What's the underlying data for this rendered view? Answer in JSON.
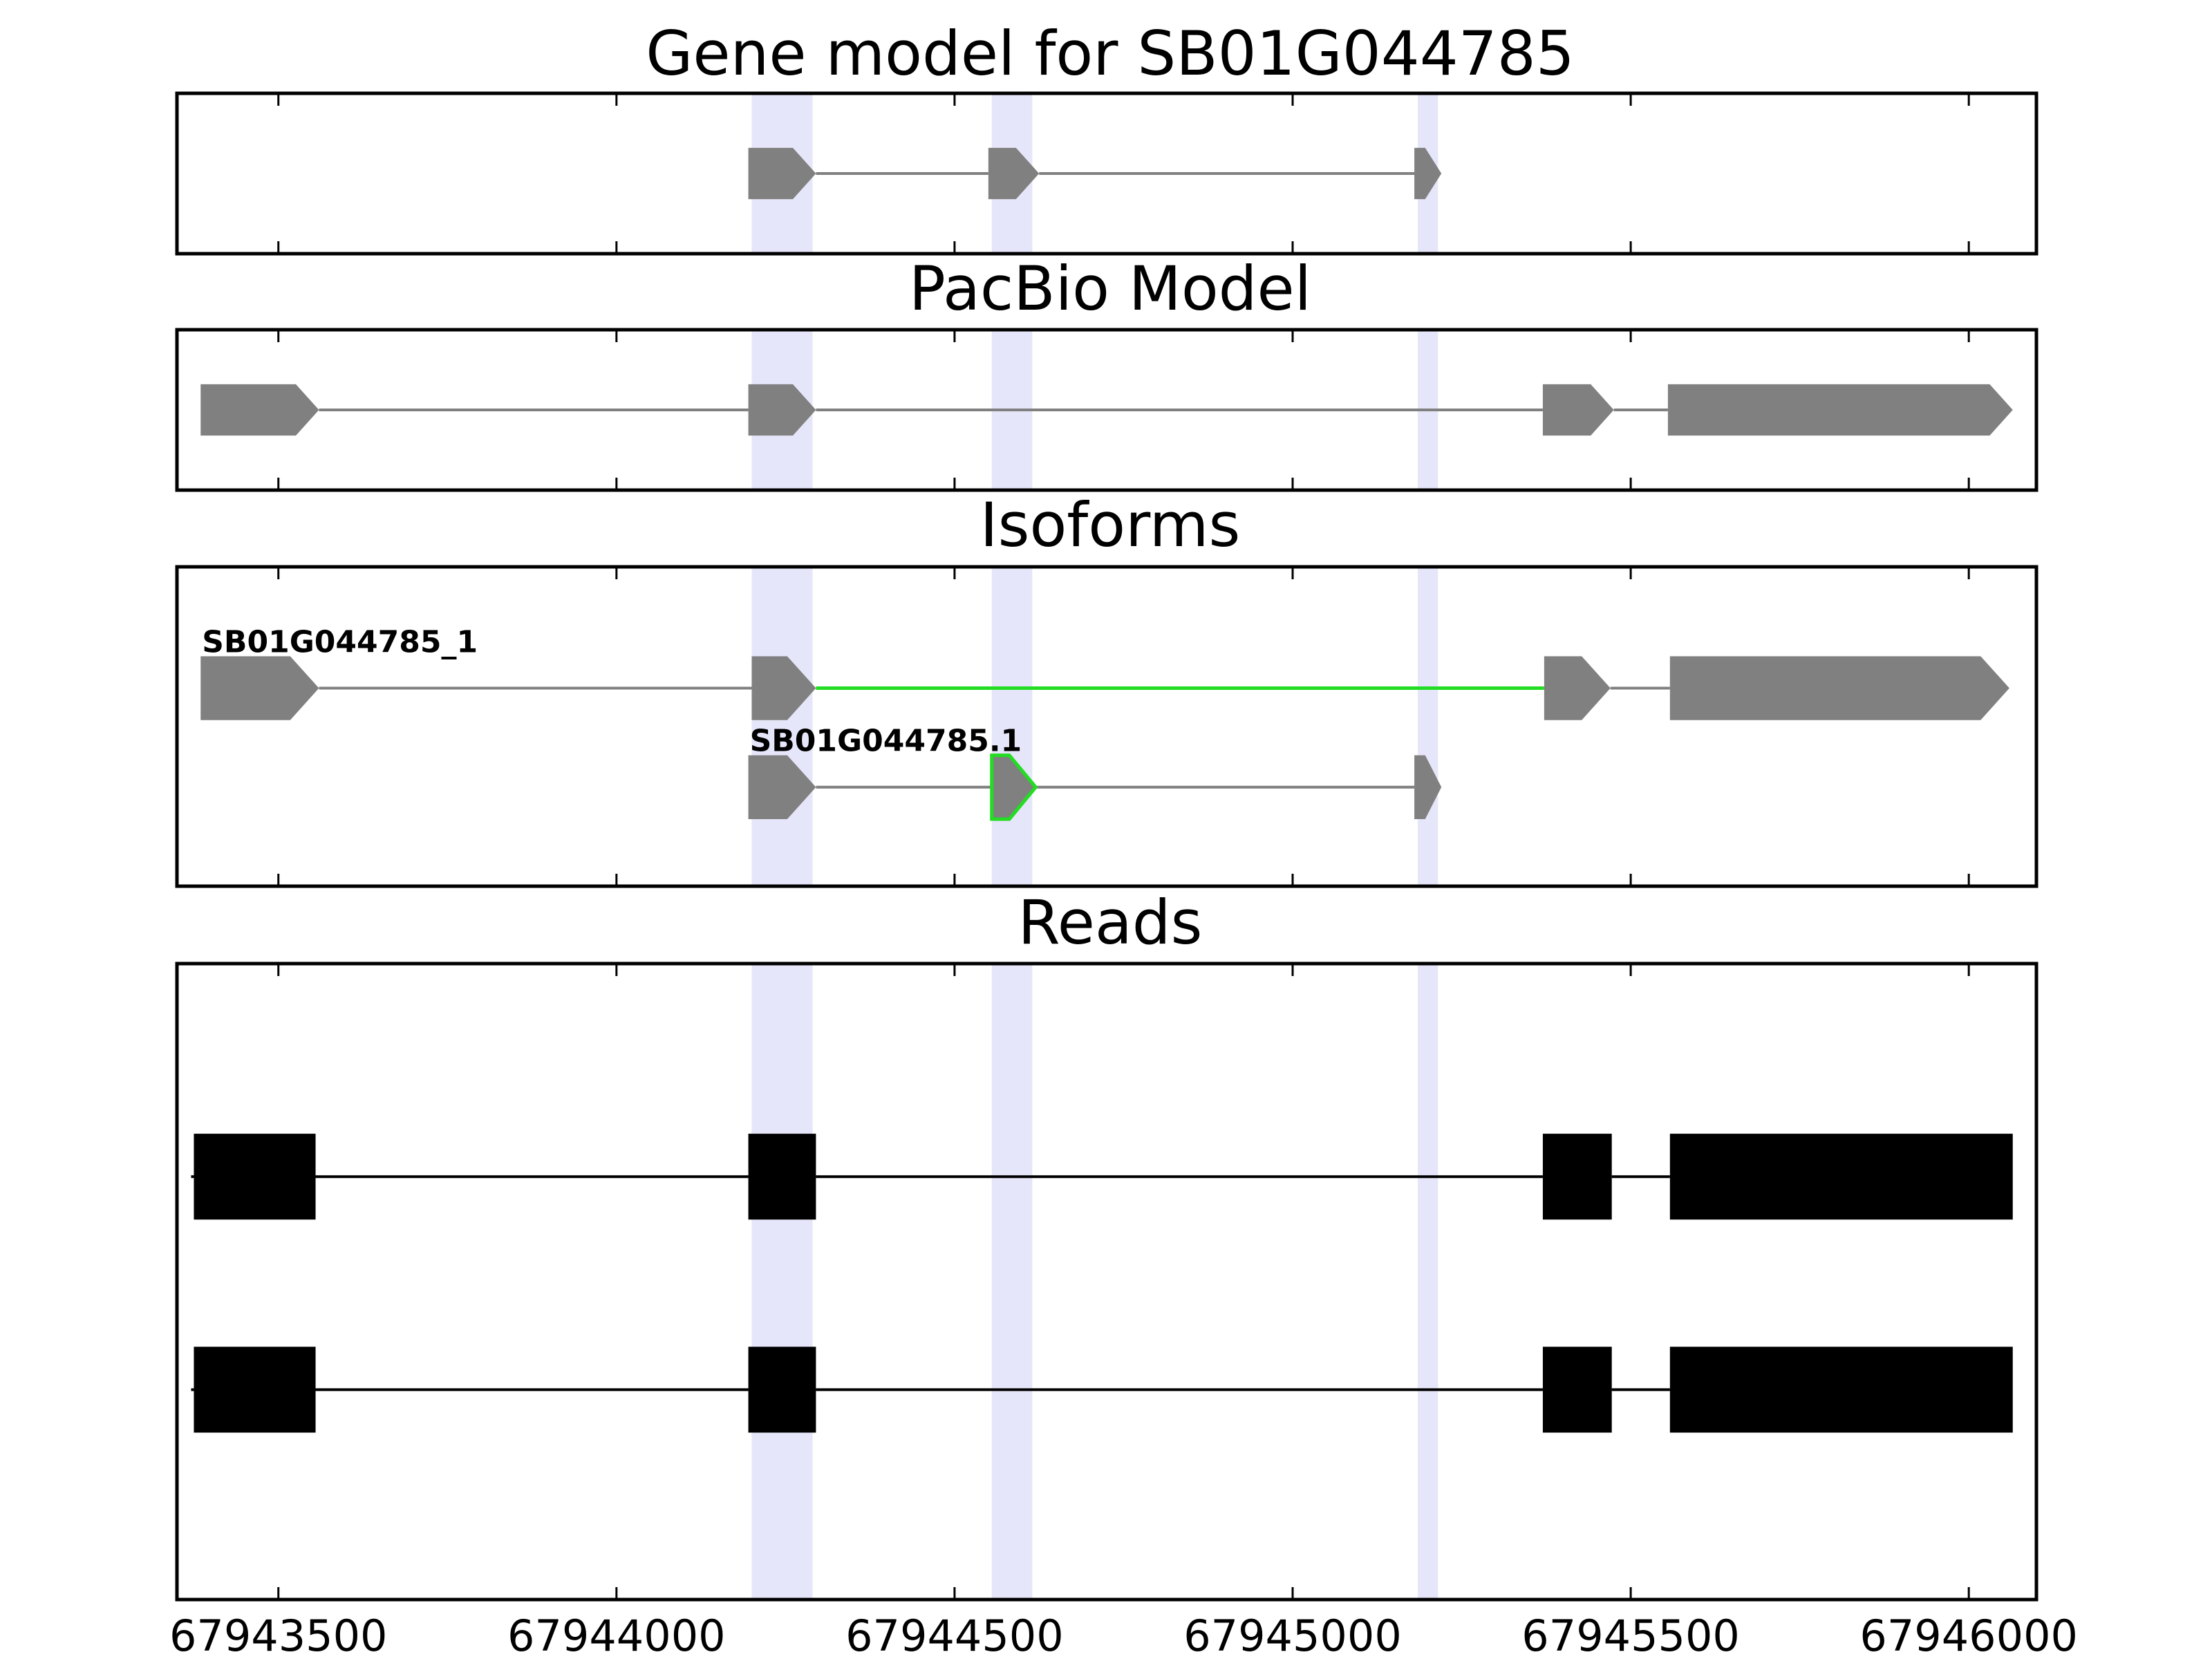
{
  "chart_data": {
    "type": "gene-track",
    "xlim": [
      67943350,
      67946100
    ],
    "xticks": [
      67943500,
      67944000,
      67944500,
      67945000,
      67945500,
      67946000
    ],
    "highlight_regions": [
      [
        67944200,
        67944290
      ],
      [
        67944555,
        67944615
      ],
      [
        67945185,
        67945215
      ]
    ],
    "colors": {
      "feature": "#808080",
      "novel_junction": "#22dd22",
      "read": "#000000",
      "highlight": "#e6e6fa"
    },
    "panels": [
      {
        "id": "gene-model",
        "title": "Gene model for SB01G044785",
        "ylim": [
          0,
          1
        ],
        "tracks": [
          {
            "label": "",
            "y": 0.5,
            "height": 0.32,
            "exons": [
              [
                67944195,
                67944295
              ],
              [
                67944550,
                67944625
              ],
              [
                67945180,
                67945220
              ]
            ],
            "highlight_introns": [],
            "highlight_exons": []
          }
        ]
      },
      {
        "id": "pacbio-model",
        "title": "PacBio Model",
        "ylim": [
          0,
          1
        ],
        "tracks": [
          {
            "label": "",
            "y": 0.5,
            "height": 0.32,
            "exons": [
              [
                67943385,
                67943560
              ],
              [
                67944195,
                67944295
              ],
              [
                67945370,
                67945475
              ],
              [
                67945555,
                67946065
              ]
            ],
            "highlight_introns": [],
            "highlight_exons": []
          }
        ]
      },
      {
        "id": "isoforms",
        "title": "Isoforms",
        "ylim": [
          0,
          1
        ],
        "tracks": [
          {
            "label": "SB01G044785_1",
            "y": 0.62,
            "height": 0.2,
            "exons": [
              [
                67943385,
                67943560
              ],
              [
                67944200,
                67944295
              ],
              [
                67945372,
                67945470
              ],
              [
                67945558,
                67946060
              ]
            ],
            "highlight_introns": [
              1
            ],
            "highlight_exons": []
          },
          {
            "label": "SB01G044785.1",
            "y": 0.31,
            "height": 0.2,
            "exons": [
              [
                67944195,
                67944295
              ],
              [
                67944555,
                67944620
              ],
              [
                67945180,
                67945220
              ]
            ],
            "highlight_introns": [],
            "highlight_exons": [
              1
            ]
          }
        ]
      },
      {
        "id": "reads",
        "title": "Reads",
        "ylim": [
          0,
          1
        ],
        "tracks": [
          {
            "label": "",
            "y": 0.665,
            "height": 0.135,
            "exons": [
              [
                67943375,
                67943555
              ],
              [
                67944195,
                67944295
              ],
              [
                67945370,
                67945472
              ],
              [
                67945558,
                67946065
              ]
            ]
          },
          {
            "label": "",
            "y": 0.33,
            "height": 0.135,
            "exons": [
              [
                67943375,
                67943555
              ],
              [
                67944195,
                67944295
              ],
              [
                67945370,
                67945472
              ],
              [
                67945558,
                67946065
              ]
            ]
          }
        ]
      }
    ]
  }
}
